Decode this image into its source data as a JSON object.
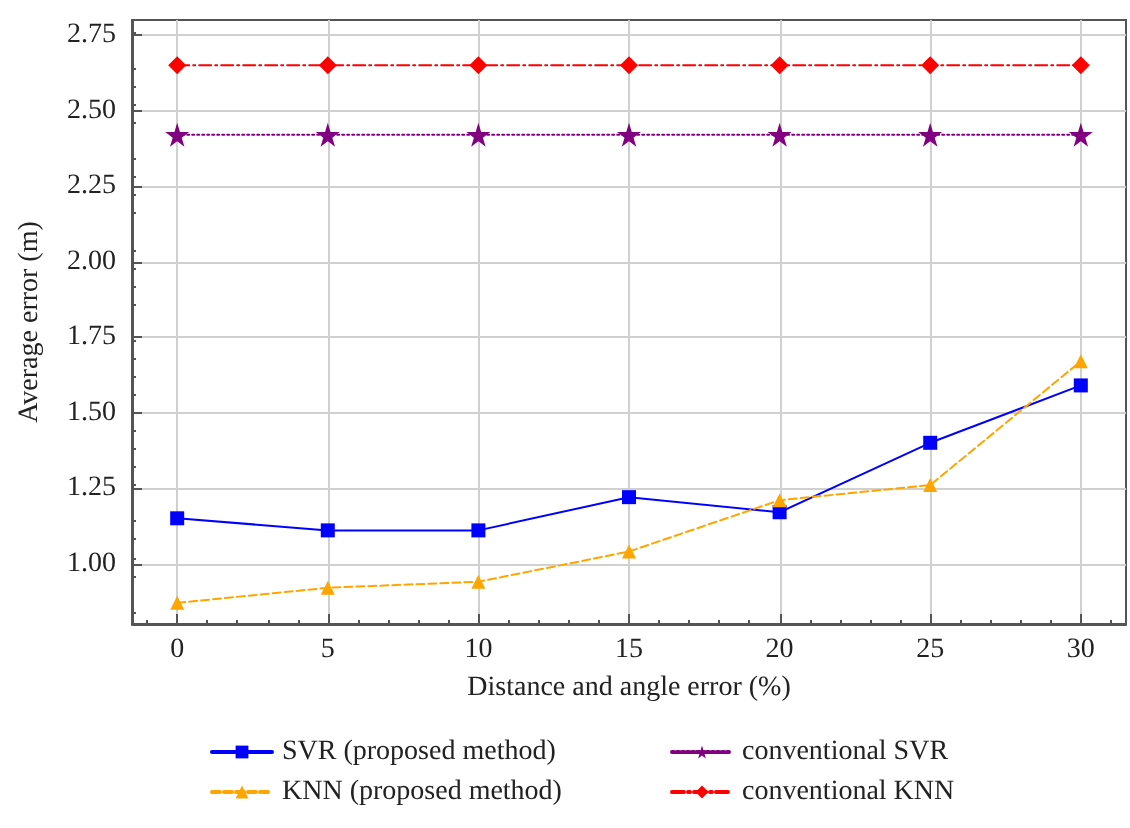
{
  "chart_data": {
    "type": "line",
    "xlabel": "Distance and angle error (%)",
    "ylabel": "Average error (m)",
    "x": [
      0,
      5,
      10,
      15,
      20,
      25,
      30
    ],
    "xlim": [
      -1.5,
      31.5
    ],
    "xticks": [
      0,
      5,
      10,
      15,
      20,
      25,
      30
    ],
    "ylim": [
      0.8,
      2.8
    ],
    "yticks": [
      {
        "value": 1,
        "label": "1.00"
      },
      1.25,
      {
        "value": 1.5,
        "label": "1.50"
      },
      1.75,
      {
        "value": 2,
        "label": "2.00"
      },
      2.25,
      {
        "value": 2.5,
        "label": "2.50"
      },
      2.75
    ],
    "grid": true,
    "legend": "bottom",
    "series": [
      {
        "name": "SVR (proposed method)",
        "color": "#0000ff",
        "marker": "square",
        "line_style": "solid",
        "values": [
          1.15,
          1.11,
          1.11,
          1.22,
          1.17,
          1.4,
          1.59
        ]
      },
      {
        "name": "KNN (proposed method)",
        "color": "#ffa500",
        "marker": "triangle",
        "line_style": "dashed",
        "values": [
          0.87,
          0.92,
          0.94,
          1.04,
          1.21,
          1.26,
          1.67
        ]
      },
      {
        "name": "conventional SVR",
        "color": "#800080",
        "marker": "star",
        "line_style": "dotted",
        "values": [
          2.42,
          2.42,
          2.42,
          2.42,
          2.42,
          2.42,
          2.42
        ]
      },
      {
        "name": "conventional KNN",
        "color": "#ff0000",
        "marker": "diamond",
        "line_style": "dashdot",
        "values": [
          2.65,
          2.65,
          2.65,
          2.65,
          2.65,
          2.65,
          2.65
        ]
      }
    ]
  }
}
